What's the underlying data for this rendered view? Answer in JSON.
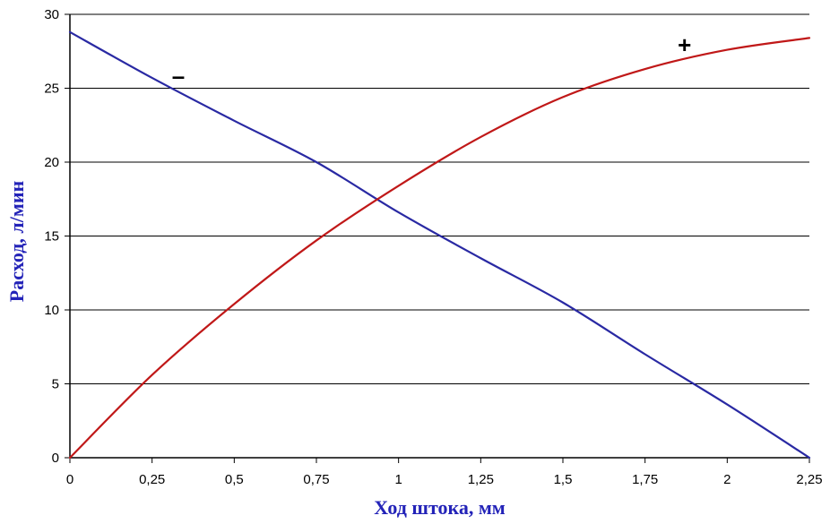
{
  "chart_data": {
    "type": "line",
    "title": "",
    "xlabel": "Ход штока, мм",
    "ylabel": "Расход, л/мин",
    "xlim": [
      0,
      2.25
    ],
    "ylim": [
      0,
      30
    ],
    "x_ticks": [
      "0",
      "0,25",
      "0,5",
      "0,75",
      "1",
      "1,25",
      "1,5",
      "1,75",
      "2",
      "2,25"
    ],
    "y_ticks": [
      "0",
      "5",
      "10",
      "15",
      "20",
      "25",
      "30"
    ],
    "grid": "horizontal",
    "legend": "none",
    "series": [
      {
        "marker_label": "–",
        "color": "#2929a3",
        "x": [
          0,
          0.25,
          0.5,
          0.75,
          1,
          1.25,
          1.5,
          1.75,
          2,
          2.25
        ],
        "y": [
          28.8,
          25.7,
          22.8,
          20.0,
          16.6,
          13.5,
          10.5,
          7.0,
          3.6,
          0
        ]
      },
      {
        "marker_label": "+",
        "color": "#c01818",
        "x": [
          0,
          0.25,
          0.5,
          0.75,
          1,
          1.25,
          1.5,
          1.75,
          2,
          2.25
        ],
        "y": [
          0,
          5.6,
          10.4,
          14.7,
          18.4,
          21.7,
          24.4,
          26.3,
          27.6,
          28.4
        ]
      }
    ]
  }
}
